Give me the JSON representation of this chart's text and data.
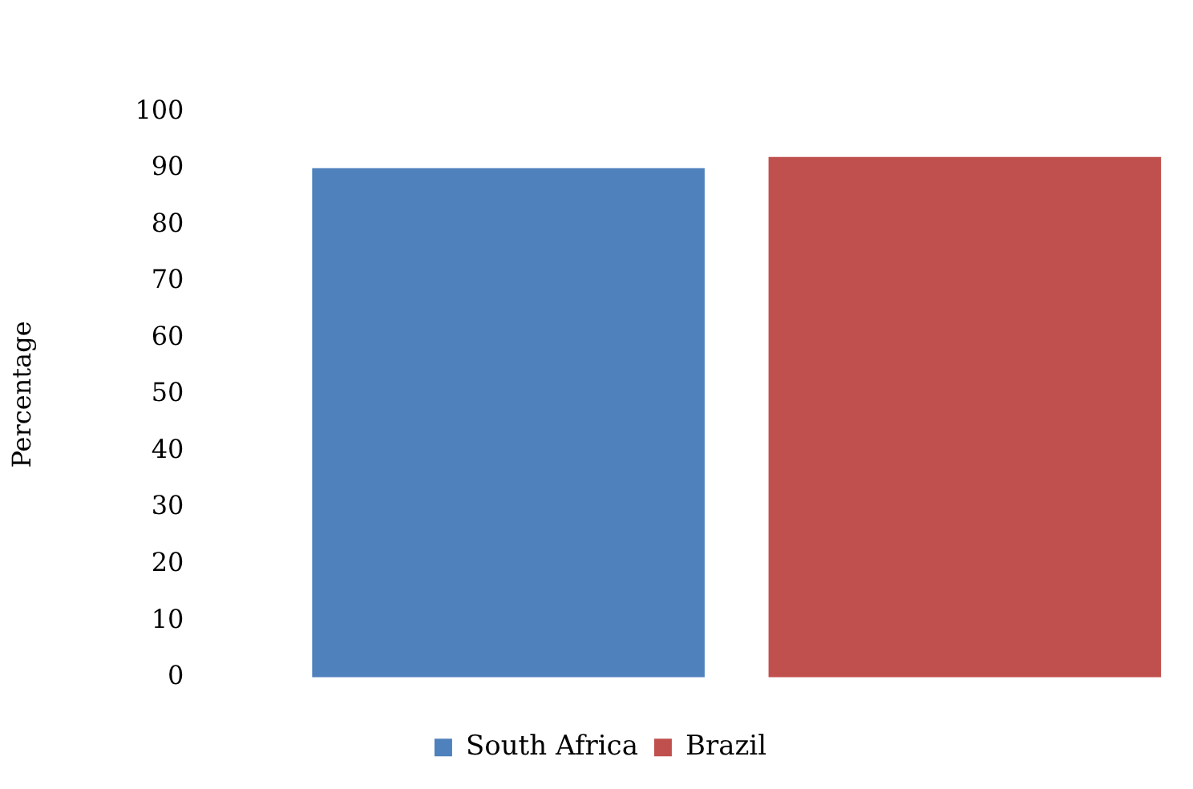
{
  "chart_data": {
    "type": "bar",
    "ylabel": "Percentage",
    "categories": [
      null
    ],
    "series": [
      {
        "name": "South Africa",
        "color": "#4f81bd",
        "values": [
          90
        ]
      },
      {
        "name": "Brazil",
        "color": "#c0504d",
        "values": [
          92
        ]
      }
    ],
    "ylim": [
      0,
      100
    ],
    "yticks": [
      0,
      10,
      20,
      30,
      40,
      50,
      60,
      70,
      80,
      90,
      100
    ],
    "grid": false,
    "legend": "bottom"
  }
}
